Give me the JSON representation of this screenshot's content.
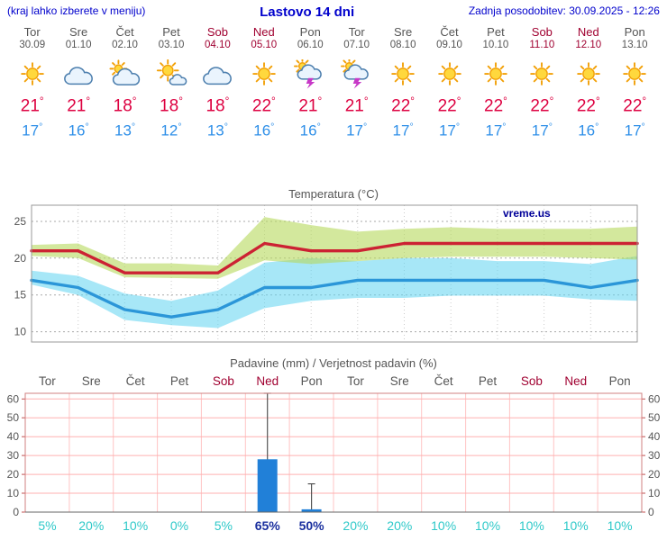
{
  "header": {
    "left_note": "(kraj lahko izberete v meniju)",
    "title": "Lastovo 14 dni",
    "last_update": "Zadnja posodobitev: 30.09.2025 - 12:26"
  },
  "deg_symbol": "°",
  "colors": {
    "link_blue": "#0000cc",
    "text_gray": "#555555",
    "weekend_red": "#a00030",
    "high_temp_red": "#dd0040",
    "low_temp_blue": "#2e8fe8",
    "temp_line_red": "#cc2233",
    "temp_band_green": "#b5d85c",
    "temp_line_blue": "#2b96d8",
    "temp_band_cyan": "#5fd4f0",
    "grid_gray": "#aaaaaa",
    "precip_grid_pink": "#ffb0b0",
    "precip_border": "#d08080",
    "precip_tick_red": "#c05050",
    "bar_blue": "#2180d8",
    "whisker_gray": "#555555",
    "pct_cyan": "#2fc9c9",
    "pct_navy": "#1a2f9e",
    "watermark_navy": "#000099"
  },
  "forecast_days": [
    {
      "name": "Tor",
      "date": "30.09",
      "weekend": false,
      "icon": "sunny",
      "high": 21,
      "low": 17
    },
    {
      "name": "Sre",
      "date": "01.10",
      "weekend": false,
      "icon": "cloudy",
      "high": 21,
      "low": 16
    },
    {
      "name": "Čet",
      "date": "02.10",
      "weekend": false,
      "icon": "partly-cloudy",
      "high": 18,
      "low": 13
    },
    {
      "name": "Pet",
      "date": "03.10",
      "weekend": false,
      "icon": "mostly-sunny",
      "high": 18,
      "low": 12
    },
    {
      "name": "Sob",
      "date": "04.10",
      "weekend": true,
      "icon": "cloudy",
      "high": 18,
      "low": 13
    },
    {
      "name": "Ned",
      "date": "05.10",
      "weekend": true,
      "icon": "sunny",
      "high": 22,
      "low": 16
    },
    {
      "name": "Pon",
      "date": "06.10",
      "weekend": false,
      "icon": "thunderstorm",
      "high": 21,
      "low": 16
    },
    {
      "name": "Tor",
      "date": "07.10",
      "weekend": false,
      "icon": "thunderstorm",
      "high": 21,
      "low": 17
    },
    {
      "name": "Sre",
      "date": "08.10",
      "weekend": false,
      "icon": "sunny",
      "high": 22,
      "low": 17
    },
    {
      "name": "Čet",
      "date": "09.10",
      "weekend": false,
      "icon": "sunny",
      "high": 22,
      "low": 17
    },
    {
      "name": "Pet",
      "date": "10.10",
      "weekend": false,
      "icon": "sunny",
      "high": 22,
      "low": 17
    },
    {
      "name": "Sob",
      "date": "11.10",
      "weekend": true,
      "icon": "sunny",
      "high": 22,
      "low": 17
    },
    {
      "name": "Ned",
      "date": "12.10",
      "weekend": true,
      "icon": "sunny",
      "high": 22,
      "low": 16
    },
    {
      "name": "Pon",
      "date": "13.10",
      "weekend": false,
      "icon": "sunny",
      "high": 22,
      "low": 17
    }
  ],
  "chart_data": [
    {
      "type": "line",
      "title": "Temperatura (°C)",
      "watermark": "vreme.us",
      "ylim": [
        8.6,
        27.2
      ],
      "yticks": [
        10,
        15,
        20,
        25
      ],
      "x_count": 14,
      "series": [
        {
          "name": "max_temp",
          "values": [
            21,
            21,
            18,
            18,
            18,
            22,
            21,
            21,
            22,
            22,
            22,
            22,
            22,
            22
          ]
        },
        {
          "name": "min_temp",
          "values": [
            17,
            16,
            13,
            12,
            13,
            16,
            16,
            17,
            17,
            17,
            17,
            17,
            16,
            17
          ]
        }
      ],
      "bands": [
        {
          "name": "max_temp_range",
          "upper": [
            21.8,
            22.0,
            19.3,
            19.3,
            19.0,
            25.6,
            24.5,
            23.6,
            24.0,
            24.2,
            24.0,
            24.0,
            24.0,
            24.3
          ],
          "lower": [
            20.3,
            20.0,
            17.4,
            17.3,
            17.2,
            19.7,
            19.2,
            19.6,
            20.0,
            20.2,
            20.2,
            20.2,
            20.0,
            19.8
          ]
        },
        {
          "name": "min_temp_range",
          "upper": [
            18.3,
            17.6,
            15.2,
            14.2,
            15.6,
            19.4,
            20.0,
            19.6,
            20.0,
            20.0,
            19.6,
            19.6,
            19.2,
            20.3
          ],
          "lower": [
            16.4,
            15.0,
            11.6,
            10.9,
            10.5,
            13.2,
            14.2,
            14.6,
            14.6,
            14.9,
            14.9,
            14.9,
            14.4,
            14.2
          ]
        }
      ]
    },
    {
      "type": "bar",
      "title": "Padavine (mm) / Verjetnost padavin (%)",
      "categories": [
        "Tor",
        "Sre",
        "Čet",
        "Pet",
        "Sob",
        "Ned",
        "Pon",
        "Tor",
        "Sre",
        "Čet",
        "Pet",
        "Sob",
        "Ned",
        "Pon"
      ],
      "weekend": [
        false,
        false,
        false,
        false,
        true,
        true,
        false,
        false,
        false,
        false,
        false,
        true,
        true,
        false
      ],
      "values_mm": [
        0,
        0,
        0,
        0,
        0,
        28,
        1.5,
        0,
        0,
        0,
        0,
        0,
        0,
        0
      ],
      "whisker_low": [
        0,
        0,
        0,
        0,
        0,
        3,
        0.5,
        0,
        0,
        0,
        0,
        0,
        0,
        0
      ],
      "whisker_high": [
        0,
        0,
        0,
        0,
        0,
        63,
        15,
        0,
        0,
        0,
        0,
        0,
        0,
        0
      ],
      "probabilities": [
        5,
        20,
        10,
        0,
        5,
        65,
        50,
        20,
        20,
        10,
        10,
        10,
        10,
        10
      ],
      "prob_labels": [
        "5%",
        "20%",
        "10%",
        "0%",
        "5%",
        "65%",
        "50%",
        "20%",
        "20%",
        "10%",
        "10%",
        "10%",
        "10%",
        "10%"
      ],
      "prob_emphasis": [
        false,
        false,
        false,
        false,
        false,
        true,
        true,
        false,
        false,
        false,
        false,
        false,
        false,
        false
      ],
      "ylim": [
        0,
        63
      ],
      "yticks": [
        0,
        10,
        20,
        30,
        40,
        50,
        60
      ]
    }
  ]
}
